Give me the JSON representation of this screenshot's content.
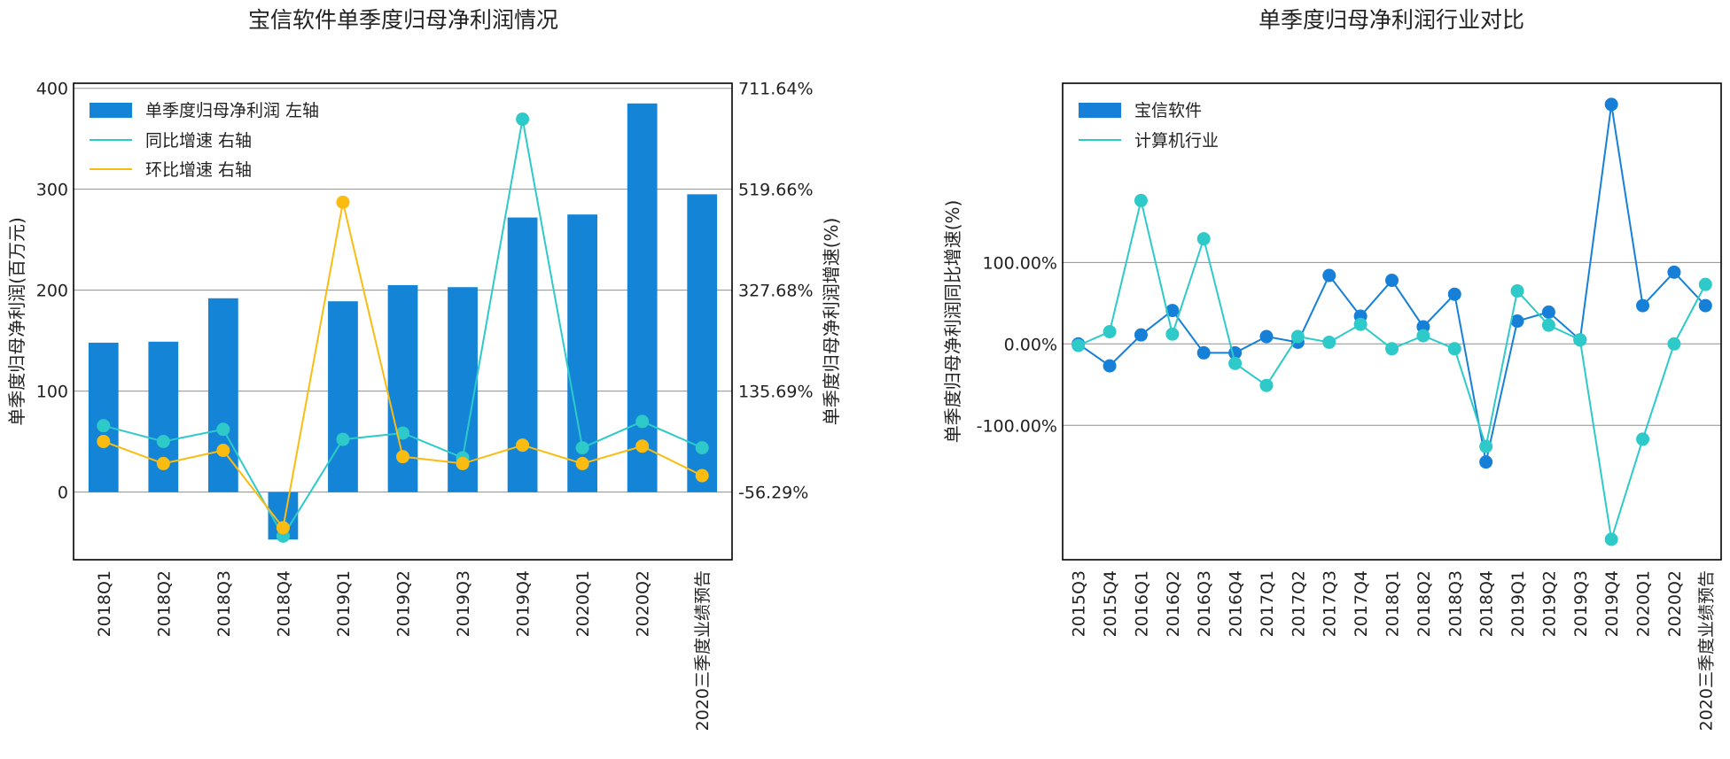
{
  "colors": {
    "bar": "#1484d6",
    "yoy": "#2ec9c9",
    "qoq": "#fbbc12",
    "company": "#1680d8",
    "industry": "#2ec9c9"
  },
  "chart_data": [
    {
      "type": "bar",
      "title": "宝信软件单季度归母净利润情况",
      "categories": [
        "2018Q1",
        "2018Q2",
        "2018Q3",
        "2018Q4",
        "2019Q1",
        "2019Q2",
        "2019Q3",
        "2019Q4",
        "2020Q1",
        "2020Q2",
        "2020三季度业绩预告"
      ],
      "ylabel": "单季度归母净利润(百万元)",
      "y2label": "单季度归母净利润增速(%)",
      "ylim": [
        -67,
        405
      ],
      "yticks": [
        0,
        100,
        200,
        300,
        400
      ],
      "y2ticks": [
        "-56.29%",
        "135.69%",
        "327.68%",
        "519.66%",
        "711.64%"
      ],
      "y2_range": [
        -56.29,
        711.64
      ],
      "grid": true,
      "legend_position": "top-left",
      "series": [
        {
          "name": "单季度归母净利润 左轴",
          "kind": "bar",
          "values": [
            148,
            149,
            192,
            -47,
            189,
            205,
            203,
            272,
            275,
            385,
            295
          ]
        },
        {
          "name": "同比增速 右轴",
          "kind": "line",
          "axis": "right",
          "values": [
            70,
            40,
            63,
            -140,
            44,
            56,
            9,
            653,
            28,
            78,
            28
          ]
        },
        {
          "name": "环比增速 右轴",
          "kind": "line",
          "axis": "right",
          "values": [
            40,
            -2,
            23,
            -124,
            495,
            11,
            -2,
            33,
            -2,
            31,
            -25
          ]
        }
      ]
    },
    {
      "type": "line",
      "title": "单季度归母净利润行业对比",
      "categories": [
        "2015Q3",
        "2015Q4",
        "2016Q1",
        "2016Q2",
        "2016Q3",
        "2016Q4",
        "2017Q1",
        "2017Q2",
        "2017Q3",
        "2017Q4",
        "2018Q1",
        "2018Q2",
        "2018Q3",
        "2018Q4",
        "2019Q1",
        "2019Q2",
        "2019Q3",
        "2019Q4",
        "2020Q1",
        "2020Q2",
        "2020三季度业绩预告"
      ],
      "ylabel": "单季度归母净利润同比增速(%)",
      "ylim": [
        -265,
        320
      ],
      "yticks": [
        -100,
        0,
        100
      ],
      "yticklabels": [
        "-100.00%",
        "0.00%",
        "100.00%"
      ],
      "grid": true,
      "legend_position": "top-left",
      "series": [
        {
          "name": "宝信软件",
          "values": [
            0,
            -27,
            11,
            41,
            -11,
            -11,
            9,
            2,
            84,
            34,
            78,
            21,
            61,
            -145,
            28,
            39,
            5,
            294,
            47,
            88,
            47
          ]
        },
        {
          "name": "计算机行业",
          "values": [
            -2,
            15,
            176,
            12,
            129,
            -24,
            -51,
            9,
            2,
            24,
            -6,
            10,
            -6,
            -126,
            65,
            23,
            5,
            -240,
            -117,
            0,
            73
          ]
        }
      ]
    }
  ]
}
